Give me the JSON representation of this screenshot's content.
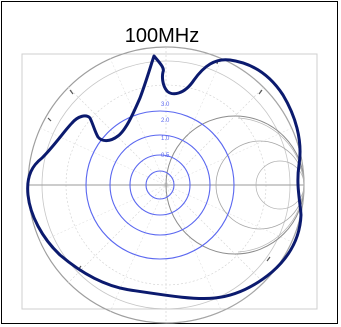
{
  "diagram": {
    "frequency_label": "100MHz",
    "colors": {
      "trace": "#0b1a6e",
      "concentric_circles": "#5a67f0",
      "grid": "#b7b7b7",
      "impedance_grid": "#8c8c8c",
      "frame": "#000000"
    },
    "concentric_labels": [
      "3.0",
      "2.0",
      "1.0",
      "0.5"
    ]
  }
}
